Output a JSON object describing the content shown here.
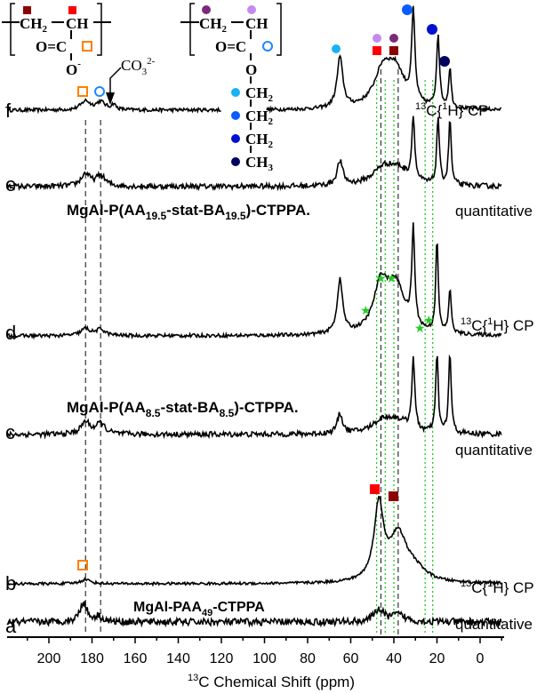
{
  "chart_data": {
    "type": "line",
    "xlabel_sup": "13",
    "xlabel": "C Chemical Shift (ppm)",
    "xlim": [
      219,
      -11
    ],
    "x_reversed": true,
    "xticks": [
      200,
      180,
      160,
      140,
      120,
      100,
      80,
      60,
      40,
      20,
      0
    ],
    "grid": false,
    "intensity_units": "arbitrary",
    "series": [
      {
        "name": "f",
        "method": "13C{1H} CP",
        "segments": [
          [
            219,
            120
          ],
          [
            99,
            -10
          ]
        ],
        "peaks": [
          [
            183,
            10,
            2.5
          ],
          [
            176,
            9,
            2.5
          ],
          [
            170,
            6,
            1.2
          ],
          [
            65,
            57,
            1.6
          ],
          [
            45,
            40,
            5
          ],
          [
            39,
            38,
            5
          ],
          [
            31,
            100,
            0.9
          ],
          [
            19.5,
            82,
            0.8
          ],
          [
            14,
            45,
            0.7
          ]
        ]
      },
      {
        "name": "e",
        "method": "quantitative",
        "segments": [
          [
            219,
            -10
          ]
        ],
        "peaks": [
          [
            183,
            14,
            2.5
          ],
          [
            176,
            12,
            2.5
          ],
          [
            65,
            27,
            1.6
          ],
          [
            45,
            18,
            6
          ],
          [
            38,
            16,
            6
          ],
          [
            31,
            72,
            0.8
          ],
          [
            19.5,
            77,
            0.7
          ],
          [
            14,
            75,
            0.7
          ]
        ]
      },
      {
        "name": "d",
        "method": "13C{1H} CP",
        "segments": [
          [
            219,
            -10
          ]
        ],
        "peaks": [
          [
            183,
            8,
            2.5
          ],
          [
            176,
            7,
            2.5
          ],
          [
            65,
            60,
            1.5
          ],
          [
            46,
            52,
            4
          ],
          [
            39,
            52,
            5
          ],
          [
            31,
            108,
            0.8
          ],
          [
            20,
            103,
            0.7
          ],
          [
            14,
            50,
            0.7
          ]
        ]
      },
      {
        "name": "c",
        "method": "quantitative",
        "segments": [
          [
            219,
            -10
          ]
        ],
        "peaks": [
          [
            183,
            14,
            2.5
          ],
          [
            176,
            12,
            2.5
          ],
          [
            65,
            22,
            1.5
          ],
          [
            45,
            14,
            6
          ],
          [
            38,
            12,
            6
          ],
          [
            31,
            81,
            0.8
          ],
          [
            20,
            89,
            0.7
          ],
          [
            14,
            91,
            0.7
          ]
        ]
      },
      {
        "name": "b",
        "method": "13C{1H} CP",
        "segments": [
          [
            219,
            -10
          ]
        ],
        "peaks": [
          [
            183,
            5,
            2.5
          ],
          [
            47,
            84,
            2.6
          ],
          [
            38,
            52,
            5
          ],
          [
            30,
            12,
            6
          ]
        ]
      },
      {
        "name": "a",
        "method": "quantitative",
        "segments": [
          [
            219,
            -10
          ]
        ],
        "peaks": [
          [
            184,
            22,
            2
          ],
          [
            177,
            6,
            2
          ],
          [
            47,
            14,
            2.5
          ],
          [
            38,
            8,
            4
          ]
        ]
      }
    ],
    "reference_lines_black_dashed": [
      183,
      176,
      46,
      38
    ],
    "reference_lines_green_dotted": [
      48,
      44,
      40,
      25.5,
      22
    ],
    "annotations": {
      "cp": "C{",
      "cp_sup1": "13",
      "cp_sup2": "1",
      "cp_tail": "H} CP",
      "quantitative": "quantitative",
      "sample_e_main": "MgAl-P(AA",
      "sample_e_sub1": "19.5",
      "sample_e_mid": "-stat-BA",
      "sample_e_sub2": "19.5",
      "sample_e_tail": ")-CTPPA.",
      "sample_c_main": "MgAl-P(AA",
      "sample_c_sub1": "8.5",
      "sample_c_mid": "-stat-BA",
      "sample_c_sub2": "8.5",
      "sample_c_tail": ")-CTPPA.",
      "sample_a_main": "MgAl-PAA",
      "sample_a_sub": "49",
      "sample_a_tail": "-CTPPA",
      "carbonate": "CO",
      "carbonate_sub": "3",
      "carbonate_sup": "2-"
    },
    "structure_labels": {
      "ch2": "CH",
      "two": "2",
      "ch": "CH",
      "oc": "O=C",
      "o": "O",
      "minus": "-",
      "ch3": "CH",
      "three": "3"
    },
    "colors": {
      "aa_ch2": "#8b0000",
      "aa_ch": "#ff0000",
      "aa_co": "#ff8000",
      "ba_co": "#1e88ff",
      "ba_ch2": "#7b2a7b",
      "ba_ch": "#c38af0",
      "ba_och2": "#19b2f2",
      "ba_ch2_b": "#0b5cff",
      "ba_ch2_c": "#0012d0",
      "ba_ch3": "#000060",
      "green_lines": "#22cc22"
    }
  }
}
